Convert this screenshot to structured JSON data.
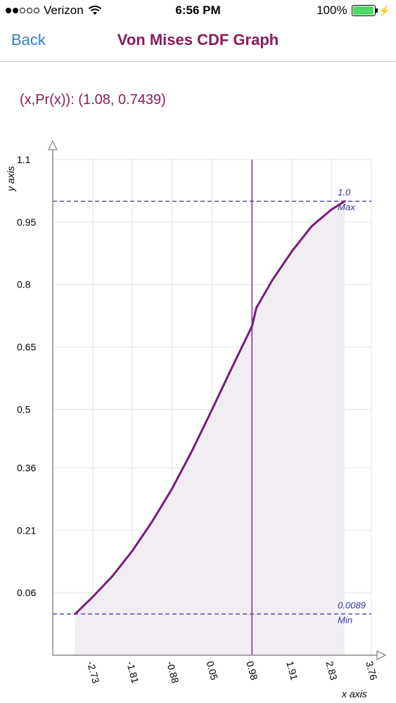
{
  "status": {
    "carrier": "Verizon",
    "time": "6:56 PM",
    "battery": "100%",
    "battery_level": 1.0,
    "signal_bars": 2
  },
  "nav": {
    "back_label": "Back",
    "title": "Von Mises CDF Graph"
  },
  "readout": "(x,Pr(x)): (1.08, 0.7439)",
  "chart_data": {
    "type": "area",
    "xlabel": "x axis",
    "ylabel": "y axis",
    "x_ticks": [
      "-2.73",
      "-1.81",
      "-0.88",
      "0.05",
      "0.98",
      "1.91",
      "2.83",
      "3.76"
    ],
    "y_ticks": [
      "0.06",
      "0.21",
      "0.36",
      "0.5",
      "0.65",
      "0.8",
      "0.95",
      "1.1"
    ],
    "xlim": [
      -3.66,
      3.76
    ],
    "ylim": [
      -0.09,
      1.1
    ],
    "series": [
      {
        "x": [
          -3.14,
          -2.73,
          -2.27,
          -1.81,
          -1.35,
          -0.88,
          -0.42,
          0.05,
          0.51,
          0.98,
          1.08,
          1.45,
          1.91,
          2.37,
          2.83,
          3.14
        ],
        "values": [
          0.0089,
          0.05,
          0.1,
          0.16,
          0.23,
          0.31,
          0.4,
          0.5,
          0.6,
          0.7,
          0.7439,
          0.81,
          0.88,
          0.94,
          0.98,
          1.0
        ]
      }
    ],
    "reference_lines": [
      {
        "value_label": "1.0",
        "tag": "Max",
        "y": 1.0
      },
      {
        "value_label": "0.0089",
        "tag": "Min",
        "y": 0.0089
      }
    ],
    "cursor_x": 0.98,
    "colors": {
      "curve": "#7b1a7e",
      "fill": "#f1edf3",
      "reference": "#3333aa",
      "cursor": "#8b2a8e",
      "grid": "#e3e3e3"
    },
    "grid": true
  }
}
